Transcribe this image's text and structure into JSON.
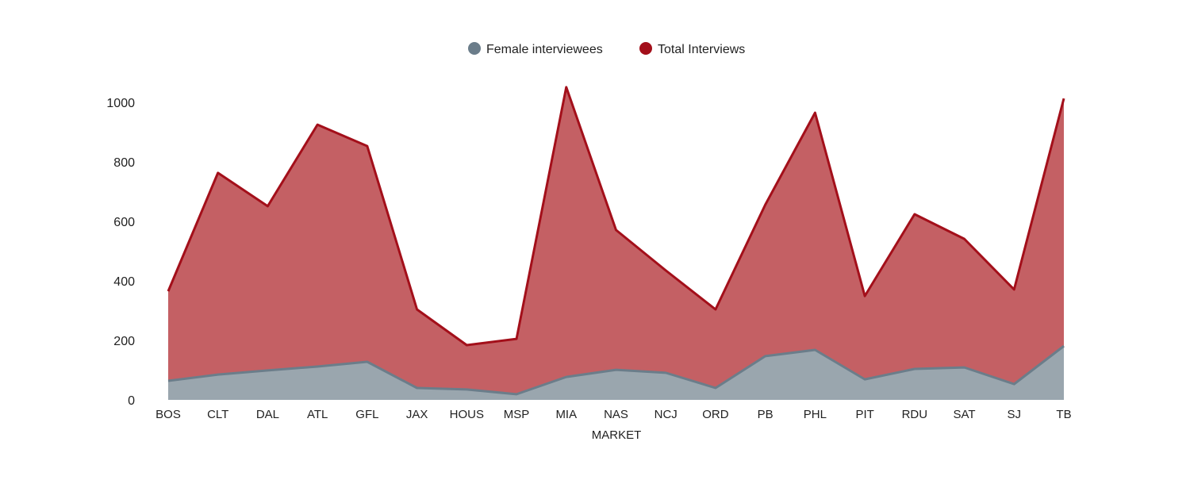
{
  "chart_data": {
    "type": "area",
    "title": "",
    "xlabel": "MARKET",
    "ylabel": "",
    "ylim": [
      0,
      1050
    ],
    "yticks": [
      0,
      200,
      400,
      600,
      800,
      1000
    ],
    "legend_position": "top-center",
    "categories": [
      "BOS",
      "CLT",
      "DAL",
      "ATL",
      "GFL",
      "JAX",
      "HOUS",
      "MSP",
      "MIA",
      "NAS",
      "NCJ",
      "ORD",
      "PB",
      "PHL",
      "PIT",
      "RDU",
      "SAT",
      "SJ",
      "TB"
    ],
    "series": [
      {
        "name": "Female interviewees",
        "color": "#6b7d8a",
        "fill": "#9aa6ae",
        "values": [
          64,
          85,
          99,
          112,
          128,
          40,
          35,
          19,
          77,
          101,
          91,
          40,
          147,
          168,
          69,
          104,
          109,
          53,
          181
        ]
      },
      {
        "name": "Total Interviews",
        "color": "#a30f1a",
        "fill": "#c46064",
        "values": [
          365,
          763,
          651,
          925,
          853,
          304,
          184,
          205,
          1051,
          571,
          435,
          304,
          656,
          965,
          349,
          624,
          541,
          371,
          1013
        ]
      }
    ]
  }
}
